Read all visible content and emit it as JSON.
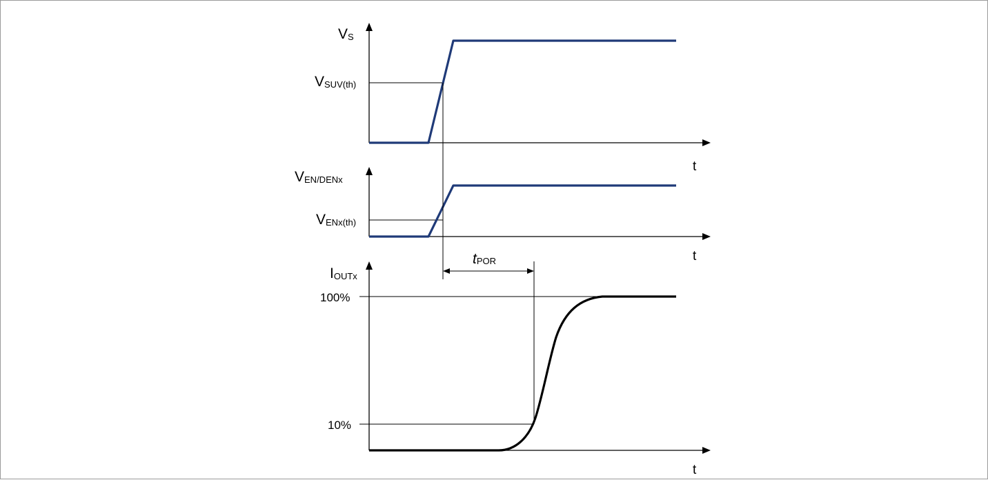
{
  "diagram": {
    "colors": {
      "signal_voltage": "#1f3a78",
      "signal_current": "#000000",
      "axis": "#000000",
      "reference_line": "#000000",
      "frame": "#9a9a9a"
    },
    "panels": [
      {
        "id": "vs",
        "axis_label_main": "V",
        "axis_label_sub": "S",
        "threshold_main": "V",
        "threshold_sub": "SUV(th)",
        "time_label": "t"
      },
      {
        "id": "ven",
        "axis_label_main": "V",
        "axis_label_sub": "EN/DENx",
        "threshold_main": "V",
        "threshold_sub": "ENx(th)",
        "time_label": "t"
      },
      {
        "id": "iout",
        "axis_label_main": "I",
        "axis_label_sub": "OUTx",
        "level_high": "100%",
        "level_low": "10%",
        "time_label": "t"
      }
    ],
    "timing": {
      "label_main": "t",
      "label_sub": "POR"
    }
  }
}
